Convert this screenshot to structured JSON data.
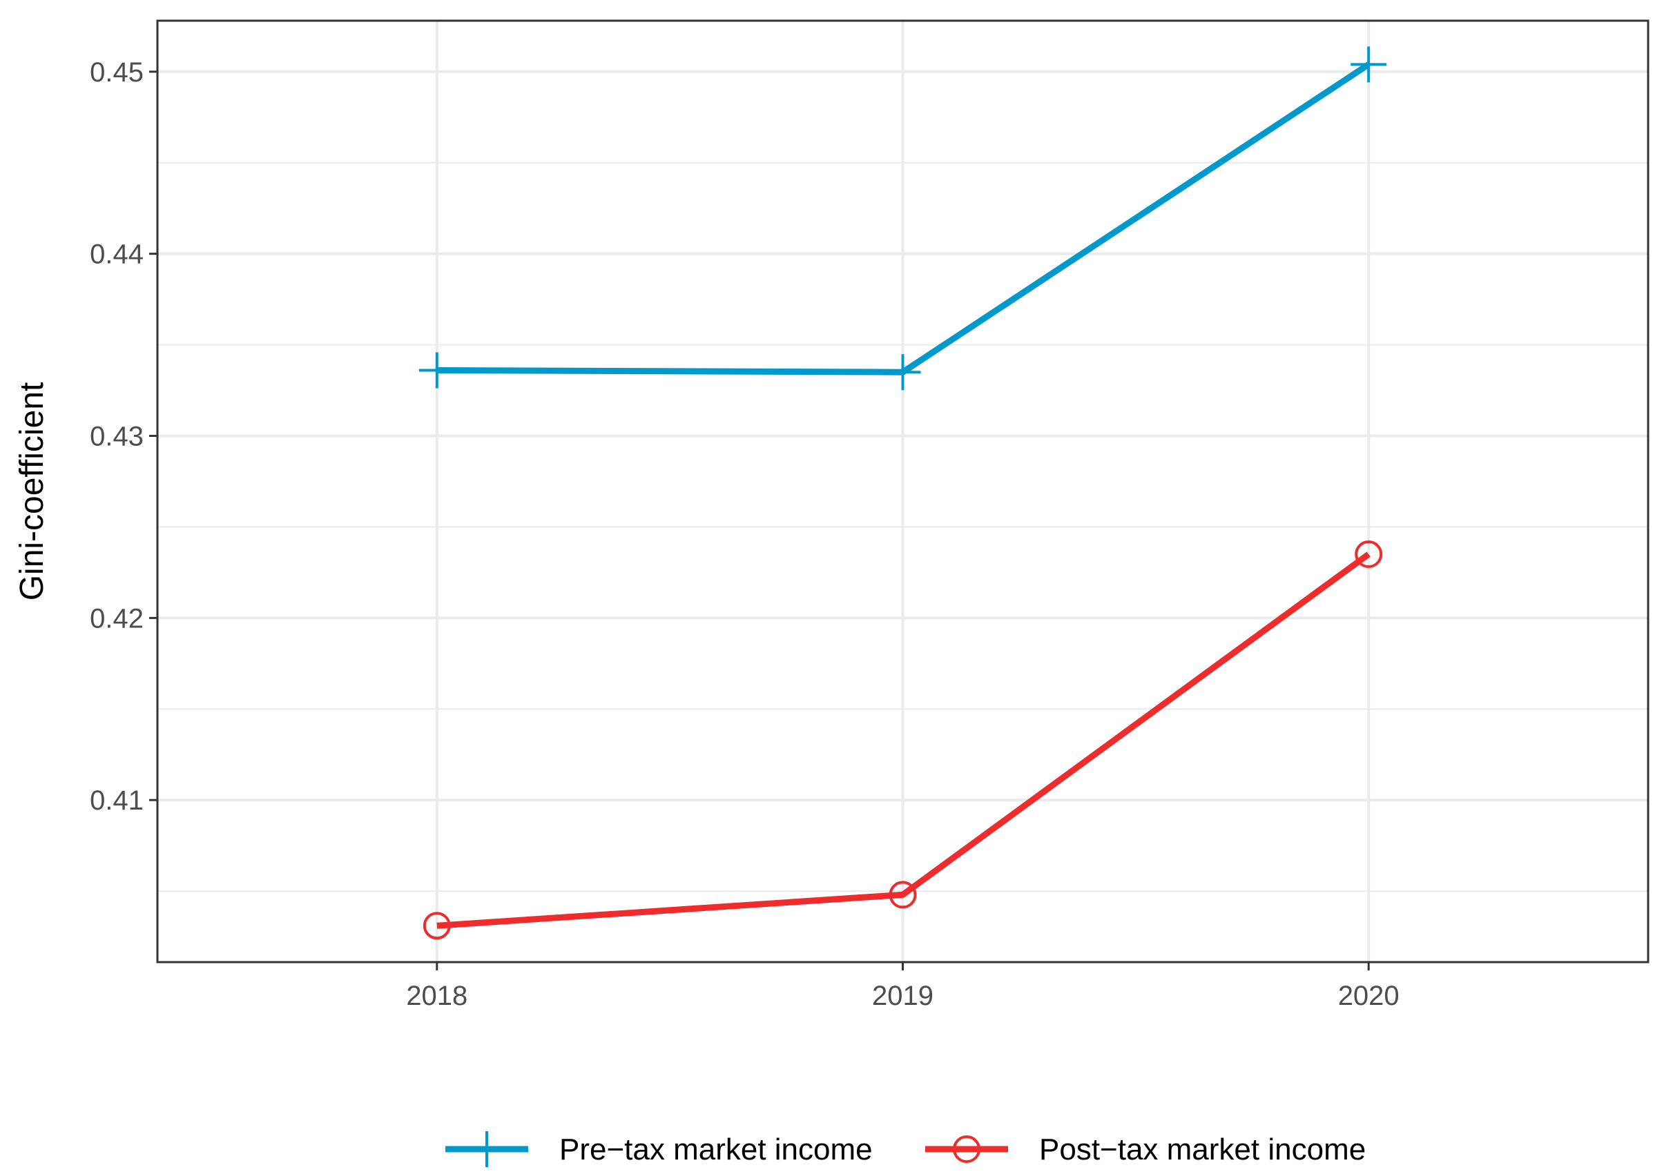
{
  "chart_data": {
    "type": "line",
    "title": "",
    "xlabel": "",
    "ylabel": "Gini-coefficient",
    "categories": [
      "2018",
      "2019",
      "2020"
    ],
    "xlim": [
      2017.4,
      2020.6
    ],
    "ylim": [
      0.4011,
      0.4528
    ],
    "y_ticks": [
      0.41,
      0.42,
      0.43,
      0.44,
      0.45
    ],
    "y_tick_labels": [
      "0.41",
      "0.42",
      "0.43",
      "0.44",
      "0.45"
    ],
    "y_minor_ticks": [
      0.405,
      0.415,
      0.425,
      0.435,
      0.445
    ],
    "grid": true,
    "legend_position": "bottom",
    "series": [
      {
        "name": "Pre−tax market income",
        "values": [
          0.4336,
          0.4335,
          0.4504
        ],
        "color": "#0099cc",
        "marker": "plus"
      },
      {
        "name": "Post−tax market income",
        "values": [
          0.4031,
          0.4048,
          0.4235
        ],
        "color": "#ee2c2c",
        "marker": "open-circle"
      }
    ]
  }
}
